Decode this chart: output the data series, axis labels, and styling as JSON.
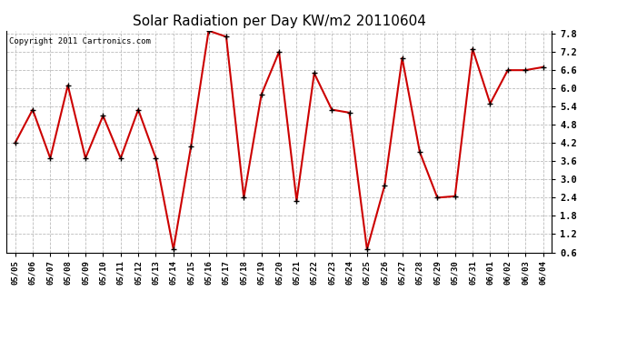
{
  "title": "Solar Radiation per Day KW/m2 20110604",
  "copyright_text": "Copyright 2011 Cartronics.com",
  "dates": [
    "05/05",
    "05/06",
    "05/07",
    "05/08",
    "05/09",
    "05/10",
    "05/11",
    "05/12",
    "05/13",
    "05/14",
    "05/15",
    "05/16",
    "05/17",
    "05/18",
    "05/19",
    "05/20",
    "05/21",
    "05/22",
    "05/23",
    "05/24",
    "05/25",
    "05/26",
    "05/27",
    "05/28",
    "05/29",
    "05/30",
    "05/31",
    "06/01",
    "06/02",
    "06/03",
    "06/04"
  ],
  "values": [
    4.2,
    5.3,
    3.7,
    6.1,
    3.7,
    5.1,
    3.7,
    5.3,
    3.7,
    0.7,
    4.1,
    7.9,
    7.7,
    2.4,
    5.8,
    7.2,
    2.3,
    6.5,
    5.3,
    5.2,
    0.7,
    2.8,
    7.0,
    3.9,
    2.4,
    2.45,
    7.3,
    5.5,
    6.6,
    6.6,
    6.7
  ],
  "line_color": "#cc0000",
  "marker": "+",
  "marker_size": 5,
  "marker_color": "#000000",
  "ylim": [
    0.6,
    7.9
  ],
  "yticks": [
    0.6,
    1.2,
    1.8,
    2.4,
    3.0,
    3.6,
    4.2,
    4.8,
    5.4,
    6.0,
    6.6,
    7.2,
    7.8
  ],
  "bg_color": "#ffffff",
  "plot_bg_color": "#ffffff",
  "grid_color": "#bbbbbb",
  "title_fontsize": 11,
  "copyright_fontsize": 6.5,
  "tick_fontsize": 6.5,
  "ytick_fontsize": 7.5
}
